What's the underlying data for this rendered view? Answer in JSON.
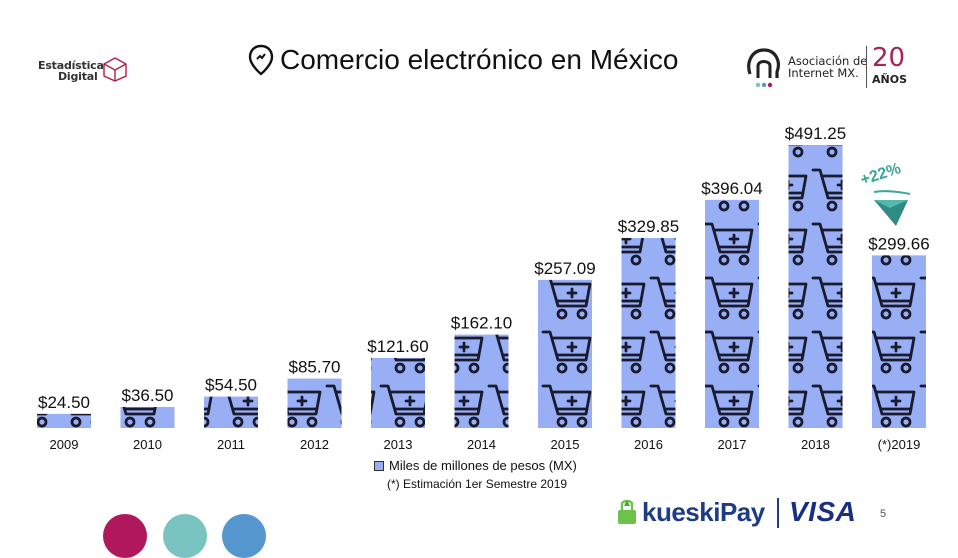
{
  "header": {
    "title": "Comercio electrónico en México",
    "logo_left_line1": "Estadística",
    "logo_left_line2": "Digital",
    "logo_right_text_line1": "Asociación de",
    "logo_right_text_line2": "Internet MX.",
    "logo_right_years": "20",
    "logo_right_years_label": "AÑOS"
  },
  "chart_data": {
    "type": "bar",
    "title": "Comercio electrónico en México",
    "categories": [
      "2009",
      "2010",
      "2011",
      "2012",
      "2013",
      "2014",
      "2015",
      "2016",
      "2017",
      "2018",
      "(*)2019"
    ],
    "values": [
      24.5,
      36.5,
      54.5,
      85.7,
      121.6,
      162.1,
      257.09,
      329.85,
      396.04,
      491.25,
      299.66
    ],
    "value_labels": [
      "$24.50",
      "$36.50",
      "$54.50",
      "$85.70",
      "$121.60",
      "$162.10",
      "$257.09",
      "$329.85",
      "$396.04",
      "$491.25",
      "$299.66"
    ],
    "series": [
      {
        "name": "Miles de millones de pesos (MX)",
        "values": [
          24.5,
          36.5,
          54.5,
          85.7,
          121.6,
          162.1,
          257.09,
          329.85,
          396.04,
          491.25,
          299.66
        ]
      }
    ],
    "legend_position": "bottom",
    "ylim": [
      0,
      500
    ],
    "grid": false,
    "bar_color": "#98aef5",
    "annotation": "+22%"
  },
  "footnote": "(*) Estimación 1er Semestre 2019",
  "legend_label": "Miles de millones de pesos (MX)",
  "sponsors": {
    "kueski": "kueskiPay",
    "visa": "VISA"
  },
  "page_number": "5",
  "colors": {
    "bar": "#98aef5",
    "cart_icon": "#1a1a2e",
    "magenta": "#b0185e",
    "teal": "#79c3c0",
    "blue": "#5696cf",
    "accent_teal": "#3aa69a"
  }
}
